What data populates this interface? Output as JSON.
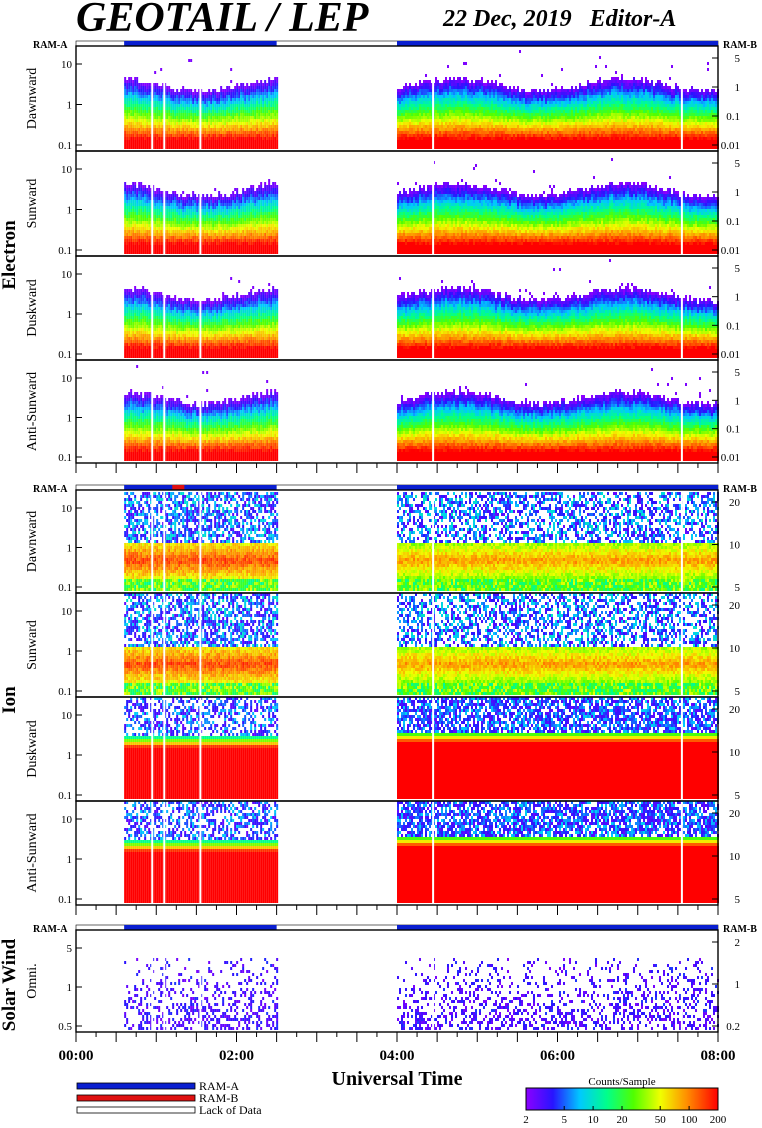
{
  "header": {
    "title": "GEOTAIL / LEP",
    "date": "22 Dec, 2019",
    "editor": "Editor-A"
  },
  "colors": {
    "ram_a": "#0a1fd0",
    "ram_b": "#e01010",
    "lack": "#ffffff",
    "frame": "#000000"
  },
  "groups": [
    {
      "name": "Electron",
      "ram_left": "RAM-A",
      "ram_right": "RAM-B"
    },
    {
      "name": "Ion",
      "ram_left": "RAM-A",
      "ram_right": "RAM-B"
    },
    {
      "name": "Solar Wind",
      "ram_left": "RAM-A",
      "ram_right": "RAM-B"
    }
  ],
  "panels": [
    {
      "group": "Electron",
      "label": "Dawnward",
      "left_ticks": [
        "10",
        "1",
        "0.1"
      ],
      "right_ticks": [
        "5",
        "1",
        "0.1",
        "0.01"
      ]
    },
    {
      "group": "Electron",
      "label": "Sunward",
      "left_ticks": [
        "10",
        "1",
        "0.1"
      ],
      "right_ticks": [
        "5",
        "1",
        "0.1",
        "0.01"
      ]
    },
    {
      "group": "Electron",
      "label": "Duskward",
      "left_ticks": [
        "10",
        "1",
        "0.1"
      ],
      "right_ticks": [
        "5",
        "1",
        "0.1",
        "0.01"
      ]
    },
    {
      "group": "Electron",
      "label": "Anti-Sunward",
      "left_ticks": [
        "10",
        "1",
        "0.1"
      ],
      "right_ticks": [
        "5",
        "1",
        "0.1",
        "0.01"
      ]
    },
    {
      "group": "Ion",
      "label": "Dawnward",
      "left_ticks": [
        "10",
        "1",
        "0.1"
      ],
      "right_ticks": [
        "20",
        "10",
        "5"
      ]
    },
    {
      "group": "Ion",
      "label": "Sunward",
      "left_ticks": [
        "10",
        "1",
        "0.1"
      ],
      "right_ticks": [
        "20",
        "10",
        "5"
      ]
    },
    {
      "group": "Ion",
      "label": "Duskward",
      "left_ticks": [
        "10",
        "1",
        "0.1"
      ],
      "right_ticks": [
        "20",
        "10",
        "5"
      ]
    },
    {
      "group": "Ion",
      "label": "Anti-Sunward",
      "left_ticks": [
        "10",
        "1",
        "0.1"
      ],
      "right_ticks": [
        "20",
        "10",
        "5"
      ]
    },
    {
      "group": "Solar Wind",
      "label": "Omni.",
      "left_ticks": [
        "5",
        "1",
        "0.5"
      ],
      "right_ticks": [
        "2",
        "1",
        "0.2"
      ]
    }
  ],
  "chart_data": {
    "type": "heatmap",
    "xlabel": "Universal Time",
    "x_ticks": [
      "00:00",
      "02:00",
      "04:00",
      "06:00",
      "08:00"
    ],
    "x_range_hours": [
      0,
      8
    ],
    "data_intervals_hours": [
      [
        0.6,
        2.5
      ],
      [
        4.0,
        8.0
      ]
    ],
    "ram_a_intervals_hours": [
      [
        0.6,
        2.5
      ],
      [
        4.0,
        8.0
      ]
    ],
    "ram_b_intervals_hours": [
      [
        1.2,
        1.35
      ]
    ],
    "electron_energy_range_keV": [
      0.08,
      40
    ],
    "ion_energy_range_keV": [
      0.08,
      40
    ],
    "colorbar": {
      "label": "Counts/Sample",
      "ticks": [
        "2",
        "5",
        "10",
        "20",
        "50",
        "100",
        "200"
      ],
      "range": [
        2,
        200
      ]
    }
  },
  "legend": [
    {
      "label": "RAM-A",
      "color": "#0a1fd0"
    },
    {
      "label": "RAM-B",
      "color": "#e01010"
    },
    {
      "label": "Lack of Data",
      "color": "#ffffff"
    }
  ]
}
